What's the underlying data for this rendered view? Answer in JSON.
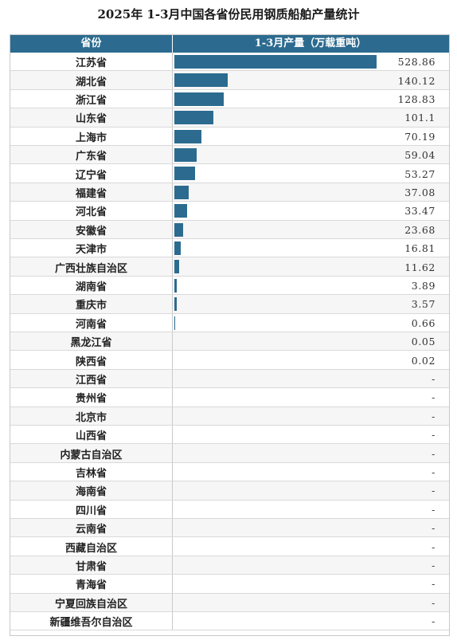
{
  "title": "2025年 1-3月中国各省份民用钢质船舶产量统计",
  "colors": {
    "header_bg": "#2c6b8f",
    "bar": "#2c6b8f",
    "header_text": "#ffffff"
  },
  "chart_data": {
    "type": "bar",
    "orientation": "horizontal",
    "title": "2025年 1-3月中国各省份民用钢质船舶产量统计",
    "columns": [
      "省份",
      "1-3月产量（万载重吨）"
    ],
    "categories": [
      "江苏省",
      "湖北省",
      "浙江省",
      "山东省",
      "上海市",
      "广东省",
      "辽宁省",
      "福建省",
      "河北省",
      "安徽省",
      "天津市",
      "广西壮族自治区",
      "湖南省",
      "重庆市",
      "河南省",
      "黑龙江省",
      "陕西省",
      "江西省",
      "贵州省",
      "北京市",
      "山西省",
      "内蒙古自治区",
      "吉林省",
      "海南省",
      "四川省",
      "云南省",
      "西藏自治区",
      "甘肃省",
      "青海省",
      "宁夏回族自治区",
      "新疆维吾尔自治区"
    ],
    "values": [
      528.86,
      140.12,
      128.83,
      101.1,
      70.19,
      59.04,
      53.27,
      37.08,
      33.47,
      23.68,
      16.81,
      11.62,
      3.89,
      3.57,
      0.66,
      0.05,
      0.02,
      null,
      null,
      null,
      null,
      null,
      null,
      null,
      null,
      null,
      null,
      null,
      null,
      null,
      null
    ],
    "value_labels": [
      "528.86",
      "140.12",
      "128.83",
      "101.1",
      "70.19",
      "59.04",
      "53.27",
      "37.08",
      "33.47",
      "23.68",
      "16.81",
      "11.62",
      "3.89",
      "3.57",
      "0.66",
      "0.05",
      "0.02",
      "-",
      "-",
      "-",
      "-",
      "-",
      "-",
      "-",
      "-",
      "-",
      "-",
      "-",
      "-",
      "-",
      "-"
    ],
    "xlim": [
      0,
      528.86
    ]
  }
}
